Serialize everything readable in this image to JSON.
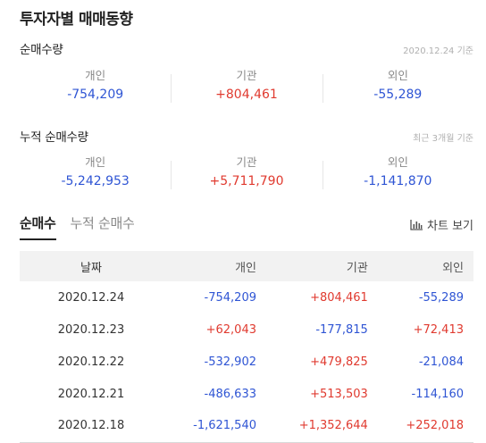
{
  "header": {
    "title": "투자자별 매매동향"
  },
  "net_buy": {
    "title": "순매수량",
    "note": "2020.12.24 기준",
    "individual": {
      "label": "개인",
      "value": "-754,209"
    },
    "institution": {
      "label": "기관",
      "value": "+804,461"
    },
    "foreign": {
      "label": "외인",
      "value": "-55,289"
    }
  },
  "cumulative": {
    "title": "누적 순매수량",
    "note": "최근 3개월 기준",
    "individual": {
      "label": "개인",
      "value": "-5,242,953"
    },
    "institution": {
      "label": "기관",
      "value": "+5,711,790"
    },
    "foreign": {
      "label": "외인",
      "value": "-1,141,870"
    }
  },
  "tabs": [
    {
      "label": "순매수",
      "active": true
    },
    {
      "label": "누적 순매수",
      "active": false
    }
  ],
  "chart_link": {
    "label": "차트 보기",
    "icon": "bar-chart-icon"
  },
  "table": {
    "headers": {
      "date": "날짜",
      "individual": "개인",
      "institution": "기관",
      "foreign": "외인"
    },
    "rows": [
      {
        "date": "2020.12.24",
        "individual": "-754,209",
        "institution": "+804,461",
        "foreign": "-55,289"
      },
      {
        "date": "2020.12.23",
        "individual": "+62,043",
        "institution": "-177,815",
        "foreign": "+72,413"
      },
      {
        "date": "2020.12.22",
        "individual": "-532,902",
        "institution": "+479,825",
        "foreign": "-21,084"
      },
      {
        "date": "2020.12.21",
        "individual": "-486,633",
        "institution": "+513,503",
        "foreign": "-114,160"
      },
      {
        "date": "2020.12.18",
        "individual": "-1,621,540",
        "institution": "+1,352,644",
        "foreign": "+252,018"
      }
    ]
  },
  "colors": {
    "positive": "#e03a2f",
    "negative": "#2f55d4"
  }
}
